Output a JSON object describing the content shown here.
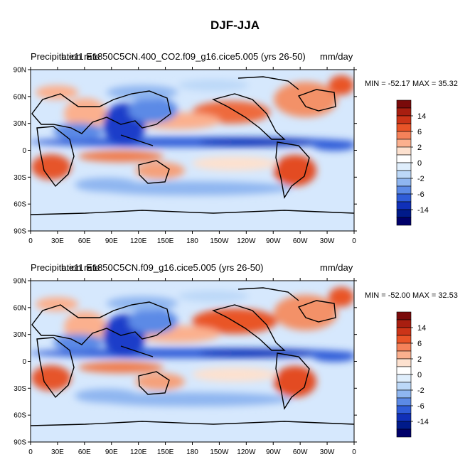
{
  "figure": {
    "title": "DJF-JJA"
  },
  "panels": [
    {
      "left_title": "Precipitation rate",
      "center_title": "b.e11.E1850C5CN.400_CO2.f09_g16.cice5.005 (yrs 26-50)",
      "units": "mm/day",
      "min_label": "MIN = -52.17 MAX =  35.32"
    },
    {
      "left_title": "Precipitation rate",
      "center_title": "b.e11.E1850C5CN.f09_g16.cice5.005 (yrs 26-50)",
      "units": "mm/day",
      "min_label": "MIN = -52.00 MAX =  32.53"
    }
  ],
  "axes": {
    "lat_labels": [
      "90N",
      "60N",
      "30N",
      "0",
      "30S",
      "60S",
      "90S"
    ],
    "lon_labels": [
      "0",
      "30E",
      "60E",
      "90E",
      "120E",
      "150E",
      "180",
      "150W",
      "120W",
      "90W",
      "60W",
      "30W",
      "0"
    ]
  },
  "colorbar": {
    "labels": [
      "14",
      "6",
      "2",
      "0",
      "-2",
      "-6",
      "-14"
    ],
    "colors": [
      "#7a0a0a",
      "#a81e10",
      "#cc3418",
      "#e95428",
      "#f5825a",
      "#fbb08e",
      "#fde1cf",
      "#ffffff",
      "#dfeefc",
      "#bcd8f8",
      "#8fb6f0",
      "#5c8ae6",
      "#2f5cd8",
      "#1030b8",
      "#001a8a",
      "#00006a"
    ]
  }
}
